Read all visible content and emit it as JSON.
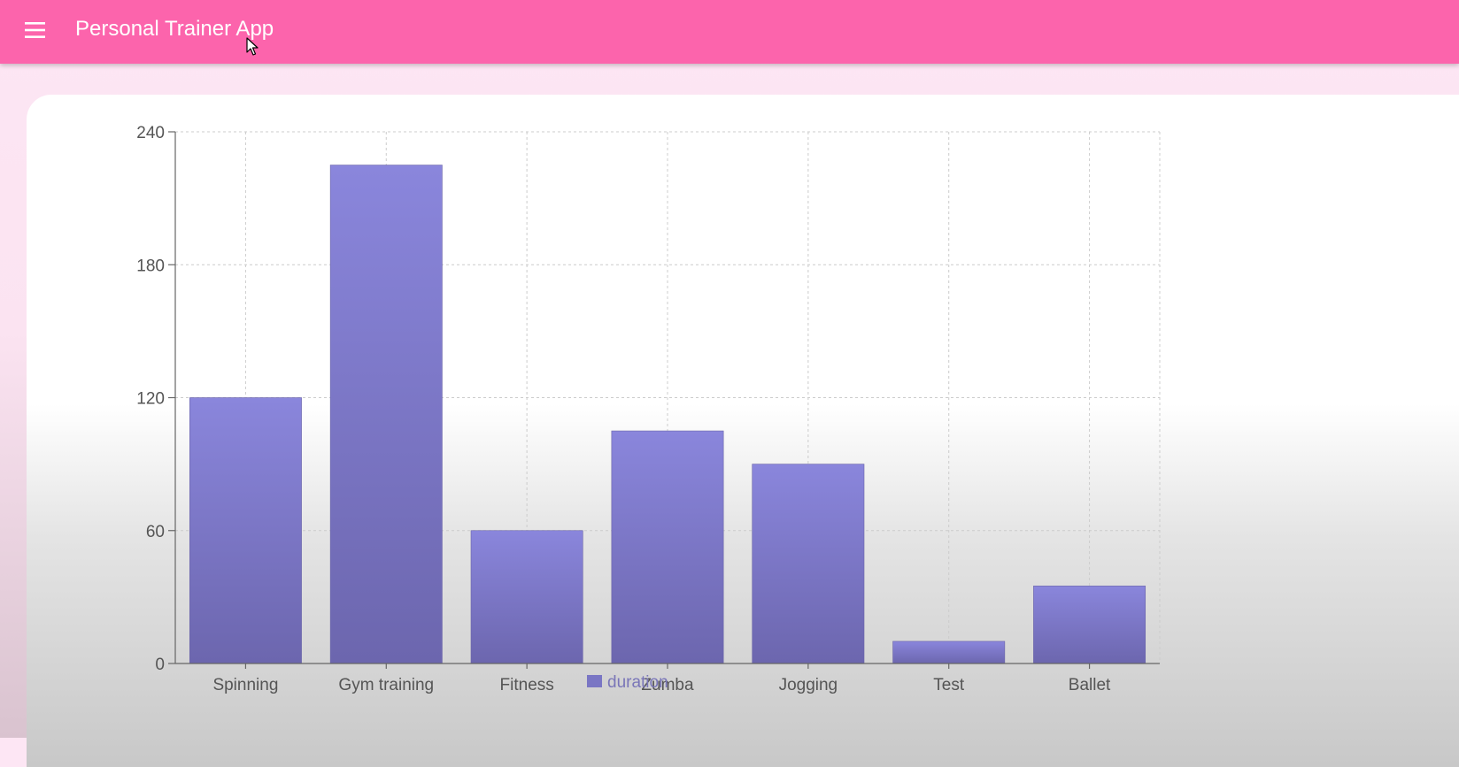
{
  "app": {
    "title": "Personal Trainer App",
    "menu_icon": "hamburger-menu-icon"
  },
  "colors": {
    "appbar": "#fc64ac",
    "bar_top": "#8a86dc",
    "bar_bottom": "#6c66ae",
    "legend_swatch": "#7a76c4"
  },
  "chart_data": {
    "type": "bar",
    "categories": [
      "Spinning",
      "Gym training",
      "Fitness",
      "Zumba",
      "Jogging",
      "Test",
      "Ballet"
    ],
    "series": [
      {
        "name": "duration",
        "values": [
          120,
          225,
          60,
          105,
          90,
          10,
          35
        ]
      }
    ],
    "ylim": [
      0,
      240
    ],
    "yticks": [
      "0",
      "60",
      "120",
      "180",
      "240"
    ],
    "grid": true,
    "legend": "bottom-center"
  }
}
